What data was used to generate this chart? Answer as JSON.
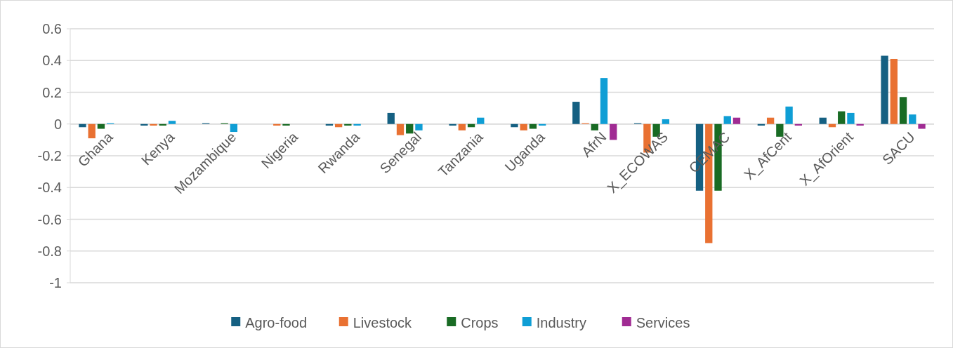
{
  "chart_data": {
    "type": "bar",
    "categories": [
      "Ghana",
      "Kenya",
      "Mozambique",
      "Nigeria",
      "Rwanda",
      "Senegal",
      "Tanzania",
      "Uganda",
      "AfrN",
      "X_ECOWAS",
      "CEMAC",
      "X_AfCent",
      "X_AfOrient",
      "SACU"
    ],
    "series": [
      {
        "name": "Agro-food",
        "color": "#156082",
        "values": [
          -0.02,
          -0.01,
          0.005,
          0,
          -0.01,
          0.07,
          -0.01,
          -0.02,
          0.14,
          0.005,
          -0.42,
          -0.01,
          0.04,
          0.43
        ]
      },
      {
        "name": "Livestock",
        "color": "#e97132",
        "values": [
          -0.09,
          -0.01,
          0,
          -0.01,
          -0.02,
          -0.07,
          -0.04,
          -0.04,
          0.005,
          -0.18,
          -0.75,
          0.04,
          -0.02,
          0.41
        ]
      },
      {
        "name": "Crops",
        "color": "#196b24",
        "values": [
          -0.03,
          -0.01,
          0.005,
          -0.01,
          -0.01,
          -0.06,
          -0.02,
          -0.03,
          -0.04,
          -0.08,
          -0.42,
          -0.08,
          0.08,
          0.17
        ]
      },
      {
        "name": "Industry",
        "color": "#0f9ed5",
        "values": [
          0.005,
          0.02,
          -0.05,
          0,
          -0.01,
          -0.04,
          0.04,
          -0.01,
          0.29,
          0.03,
          0.05,
          0.11,
          0.07,
          0.06
        ]
      },
      {
        "name": "Services",
        "color": "#a02b93",
        "values": [
          0,
          0,
          0,
          0,
          0,
          0,
          0,
          0,
          -0.1,
          0,
          0.04,
          -0.01,
          -0.01,
          -0.03
        ]
      }
    ],
    "ylim": [
      -1,
      0.6
    ],
    "yticks": [
      {
        "value": -1,
        "label": "-1"
      },
      {
        "value": -0.8,
        "label": "-0.8"
      },
      {
        "value": -0.6,
        "label": "-0.6"
      },
      {
        "value": -0.4,
        "label": "-0.4"
      },
      {
        "value": -0.2,
        "label": "-0.2"
      },
      {
        "value": 0,
        "label": "0"
      },
      {
        "value": 0.2,
        "label": "0.2"
      },
      {
        "value": 0.4,
        "label": "0.4"
      },
      {
        "value": 0.6,
        "label": "0.6"
      }
    ],
    "grid": "y",
    "legend": "bottom"
  }
}
